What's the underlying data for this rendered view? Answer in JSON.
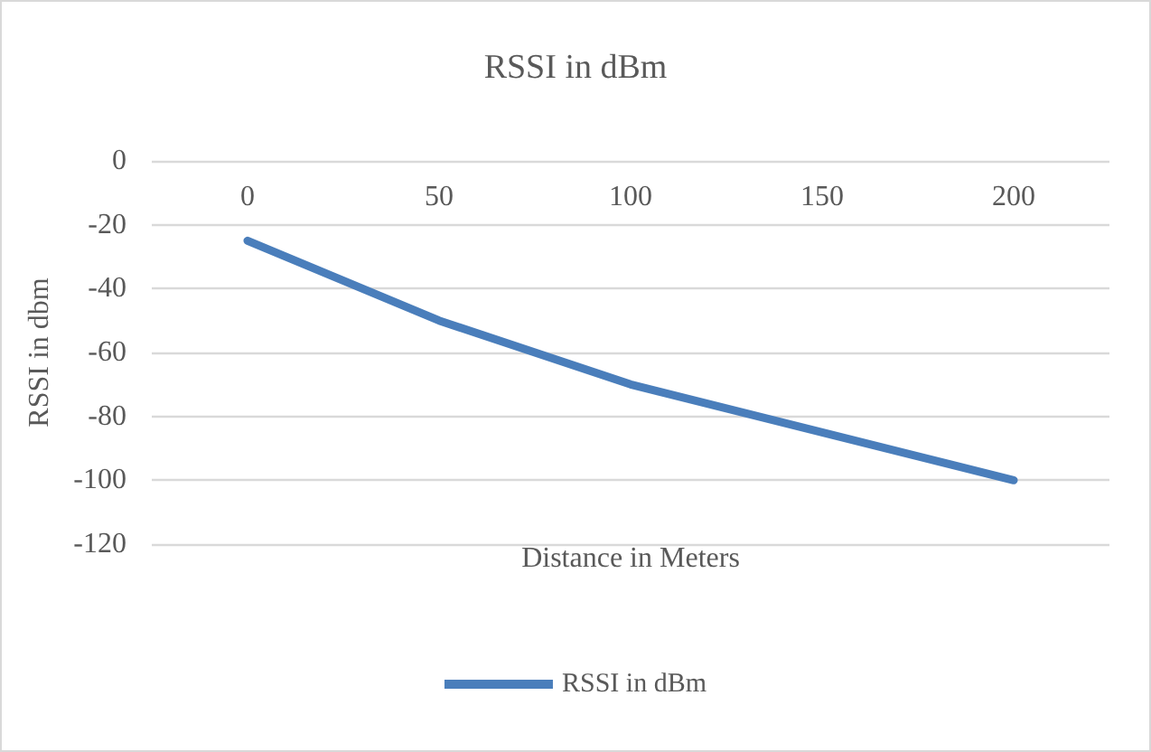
{
  "chart_data": {
    "type": "line",
    "title": "RSSI in dBm",
    "xlabel": "Distance in Meters",
    "ylabel": "RSSI in dbm",
    "categories": [
      "0",
      "50",
      "100",
      "150",
      "200"
    ],
    "series": [
      {
        "name": "RSSI in dBm",
        "color": "#4a7ebb",
        "values": [
          -25,
          -50,
          -70,
          -85,
          -100
        ]
      }
    ],
    "ylim": [
      -120,
      0
    ],
    "yticks": [
      -120,
      -100,
      -80,
      -60,
      -40,
      -20,
      0
    ],
    "grid": "y",
    "legend": "bottom",
    "marker": "none",
    "line_style": "solid"
  }
}
